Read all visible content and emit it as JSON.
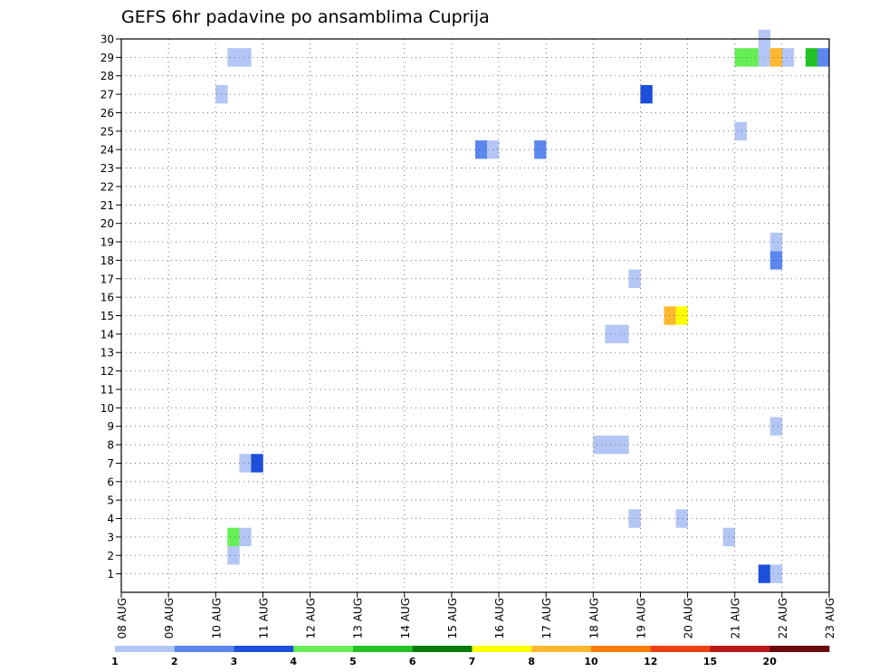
{
  "chart_data": {
    "type": "heatmap",
    "title": "GEFS 6hr padavine po ansamblima Cuprija",
    "xlabel": "",
    "ylabel": "",
    "x_tick_labels": [
      "08 AUG",
      "09 AUG",
      "10 AUG",
      "11 AUG",
      "12 AUG",
      "13 AUG",
      "14 AUG",
      "15 AUG",
      "16 AUG",
      "17 AUG",
      "18 AUG",
      "19 AUG",
      "20 AUG",
      "21 AUG",
      "22 AUG",
      "23 AUG"
    ],
    "y_tick_labels": [
      "1",
      "2",
      "3",
      "4",
      "5",
      "6",
      "7",
      "8",
      "9",
      "10",
      "11",
      "12",
      "13",
      "14",
      "15",
      "16",
      "17",
      "18",
      "19",
      "20",
      "21",
      "22",
      "23",
      "24",
      "25",
      "26",
      "27",
      "28",
      "29",
      "30"
    ],
    "x_range_days": [
      0,
      15
    ],
    "y_range": [
      0,
      30
    ],
    "grid": true,
    "colorbar": {
      "labels": [
        "1",
        "2",
        "3",
        "4",
        "5",
        "6",
        "7",
        "8",
        "10",
        "12",
        "15",
        "20"
      ],
      "colors": [
        "#b4c6f5",
        "#5b87ee",
        "#1c4fdb",
        "#66ee55",
        "#22c222",
        "#087a08",
        "#ffff00",
        "#ffb830",
        "#ff7f00",
        "#ee4010",
        "#b81a1a",
        "#6a0a0a"
      ]
    },
    "cells": [
      {
        "day": 2.25,
        "member": 2,
        "color": "#b4c6f5"
      },
      {
        "day": 2.25,
        "member": 3,
        "color": "#66ee55"
      },
      {
        "day": 2.5,
        "member": 3,
        "color": "#b4c6f5"
      },
      {
        "day": 2.5,
        "member": 7,
        "color": "#b4c6f5"
      },
      {
        "day": 2.75,
        "member": 7,
        "color": "#1c4fdb"
      },
      {
        "day": 2.25,
        "member": 29,
        "color": "#b4c6f5"
      },
      {
        "day": 2.5,
        "member": 29,
        "color": "#b4c6f5"
      },
      {
        "day": 2.0,
        "member": 27,
        "color": "#b4c6f5"
      },
      {
        "day": 7.5,
        "member": 24,
        "color": "#5b87ee"
      },
      {
        "day": 7.75,
        "member": 24,
        "color": "#b4c6f5"
      },
      {
        "day": 8.75,
        "member": 24,
        "color": "#5b87ee"
      },
      {
        "day": 10.0,
        "member": 8,
        "color": "#b4c6f5"
      },
      {
        "day": 10.25,
        "member": 8,
        "color": "#b4c6f5"
      },
      {
        "day": 10.5,
        "member": 8,
        "color": "#b4c6f5"
      },
      {
        "day": 10.25,
        "member": 14,
        "color": "#b4c6f5"
      },
      {
        "day": 10.5,
        "member": 14,
        "color": "#b4c6f5"
      },
      {
        "day": 10.75,
        "member": 4,
        "color": "#b4c6f5"
      },
      {
        "day": 10.75,
        "member": 17,
        "color": "#b4c6f5"
      },
      {
        "day": 11.0,
        "member": 27,
        "color": "#1c4fdb"
      },
      {
        "day": 11.5,
        "member": 15,
        "color": "#ffb830"
      },
      {
        "day": 11.75,
        "member": 15,
        "color": "#ffff00"
      },
      {
        "day": 11.75,
        "member": 4,
        "color": "#b4c6f5"
      },
      {
        "day": 12.75,
        "member": 3,
        "color": "#b4c6f5"
      },
      {
        "day": 13.0,
        "member": 25,
        "color": "#b4c6f5"
      },
      {
        "day": 13.0,
        "member": 29,
        "color": "#66ee55"
      },
      {
        "day": 13.25,
        "member": 29,
        "color": "#66ee55"
      },
      {
        "day": 13.5,
        "member": 30,
        "color": "#b4c6f5"
      },
      {
        "day": 13.5,
        "member": 29,
        "color": "#b4c6f5"
      },
      {
        "day": 13.75,
        "member": 29,
        "color": "#ffb830"
      },
      {
        "day": 14.0,
        "member": 29,
        "color": "#b4c6f5"
      },
      {
        "day": 14.5,
        "member": 29,
        "color": "#22c222"
      },
      {
        "day": 14.75,
        "member": 29,
        "color": "#5b87ee"
      },
      {
        "day": 13.5,
        "member": 1,
        "color": "#1c4fdb"
      },
      {
        "day": 13.75,
        "member": 1,
        "color": "#b4c6f5"
      },
      {
        "day": 13.75,
        "member": 9,
        "color": "#b4c6f5"
      },
      {
        "day": 13.75,
        "member": 18,
        "color": "#5b87ee"
      },
      {
        "day": 13.75,
        "member": 19,
        "color": "#b4c6f5"
      }
    ]
  }
}
